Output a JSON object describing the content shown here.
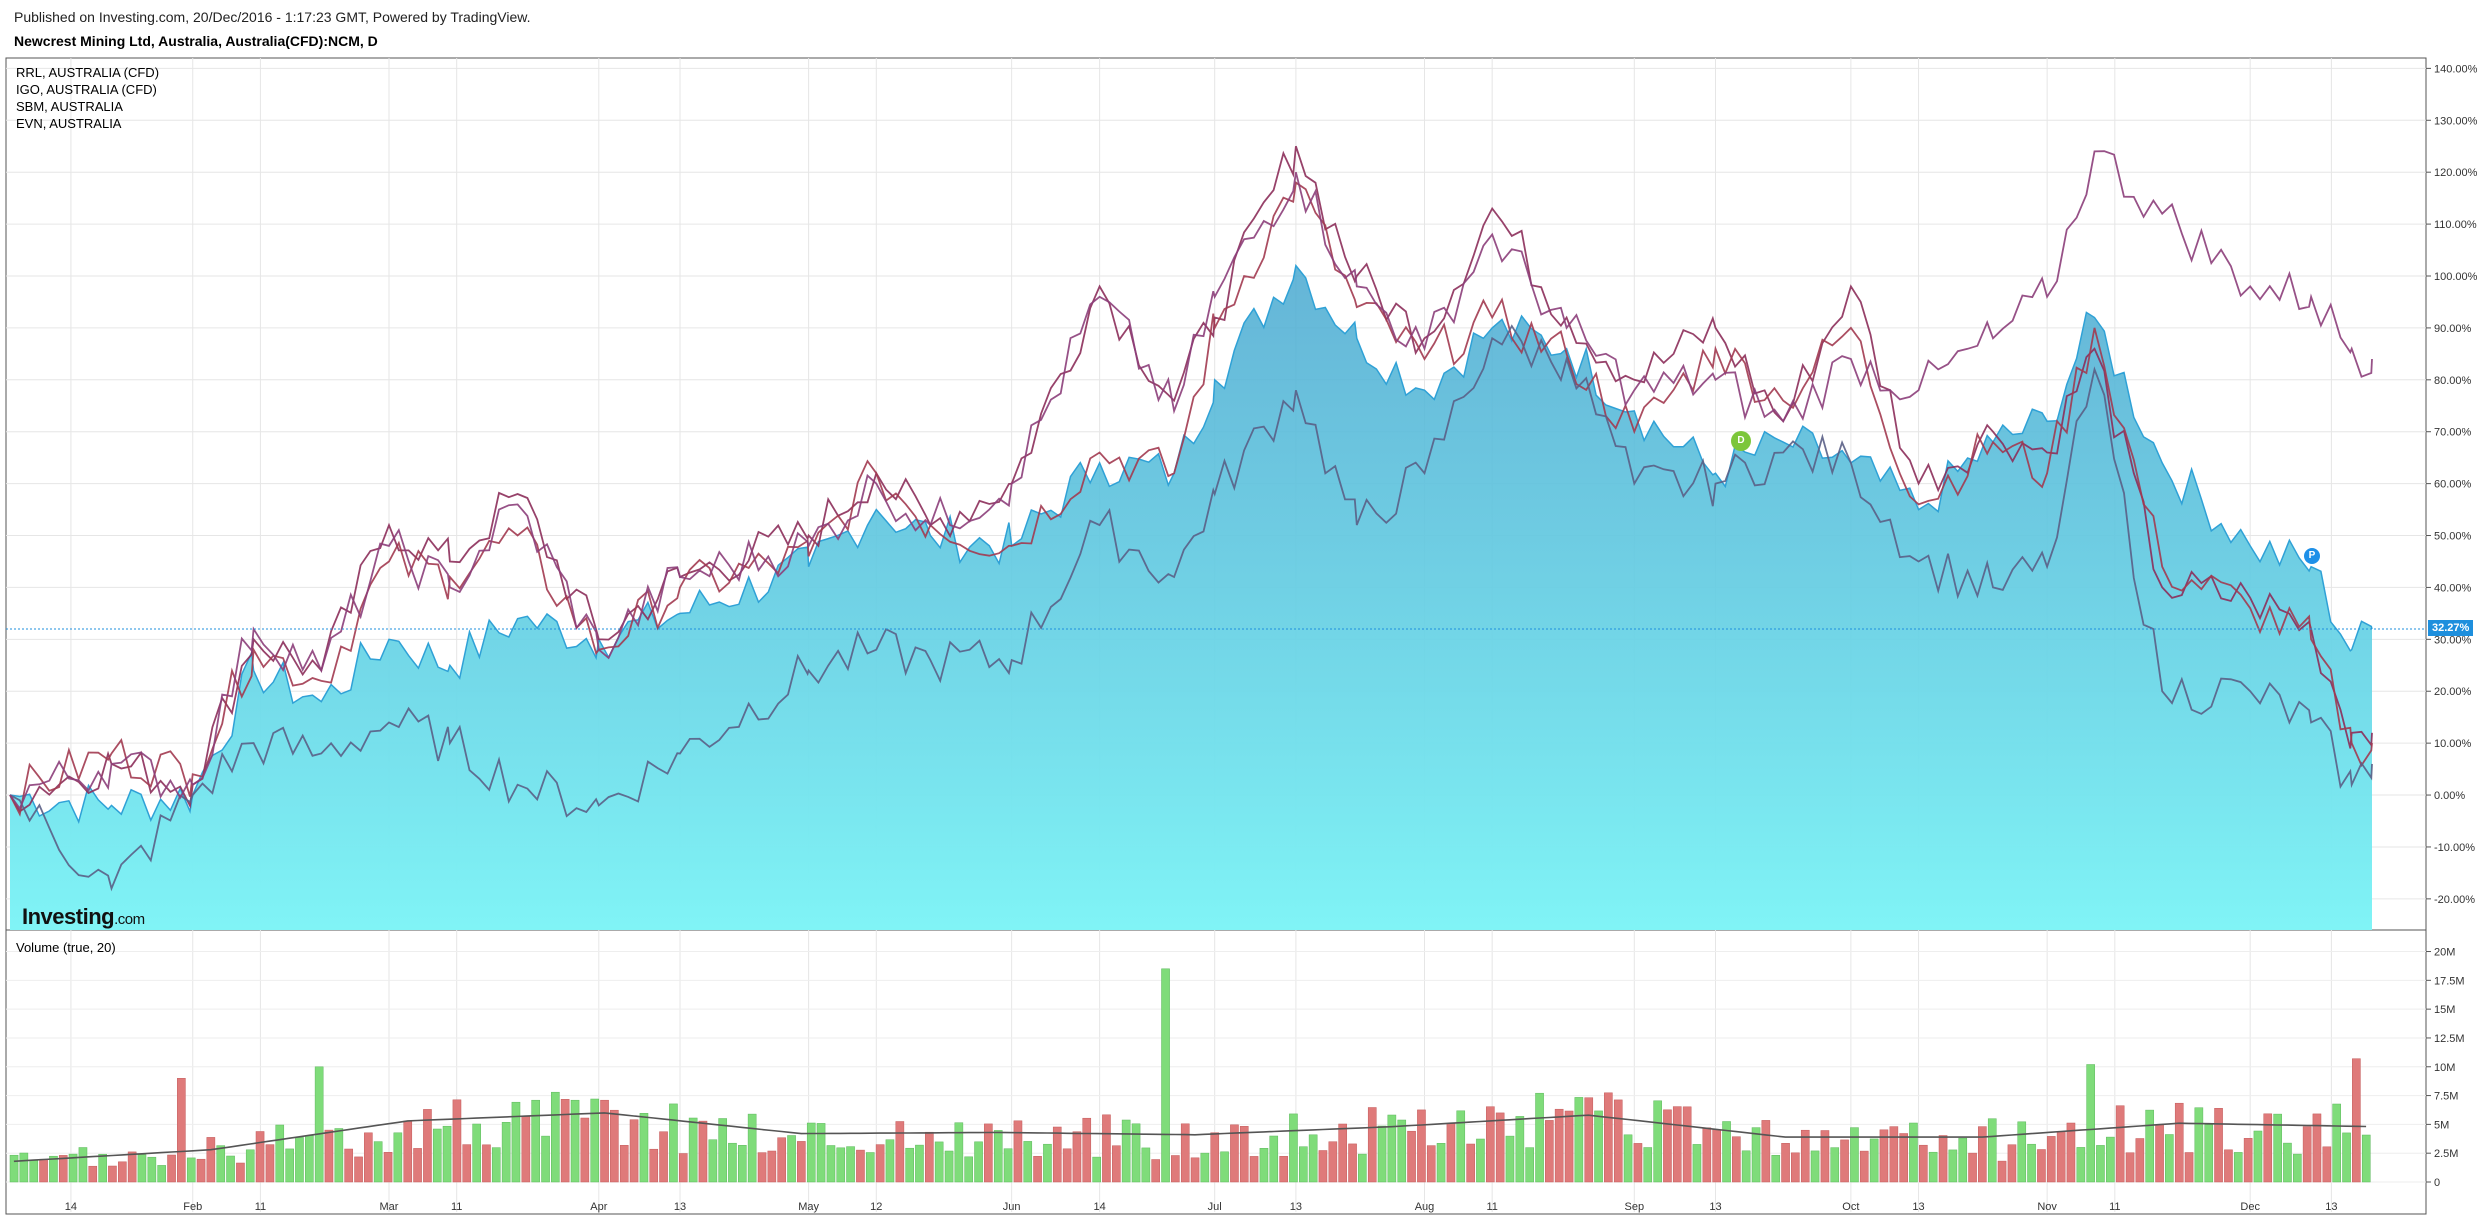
{
  "header": {
    "published": "Published on Investing.com, 20/Dec/2016 - 1:17:23 GMT, Powered by TradingView.",
    "instrument": "Newcrest Mining Ltd, Australia, Australia(CFD):NCM, D"
  },
  "legend": [
    "RRL, AUSTRALIA (CFD)",
    "IGO, AUSTRALIA (CFD)",
    "SBM, AUSTRALIA",
    "EVN, AUSTRALIA"
  ],
  "logo": {
    "main": "Investing",
    "suffix": ".com"
  },
  "volume_title": "Volume (true, 20)",
  "markers": {
    "dividend": "D",
    "profile": "P"
  },
  "last_price_label": "32.27%",
  "colors": {
    "area_fill_top": "#4aa8d0",
    "area_fill_bottom": "#80f4f6",
    "area_line": "#2fa1d6",
    "rrl": "#8c2d5a",
    "igo": "#a23a50",
    "sbm": "#5a5f86",
    "evn": "#8c3e7a",
    "vol_up": "#7fdc7a",
    "vol_down": "#df7a7a",
    "vol_ma": "#555555",
    "last_price": "#1e8fdd"
  },
  "chart_data": [
    {
      "type": "area",
      "title": "Newcrest Mining Ltd, Australia, Australia(CFD):NCM, D",
      "y_unit": "%",
      "ylim": [
        -26,
        142
      ],
      "y_ticks": [
        "140.00%",
        "130.00%",
        "120.00%",
        "110.00%",
        "100.00%",
        "90.00%",
        "80.00%",
        "70.00%",
        "60.00%",
        "50.00%",
        "40.00%",
        "30.00%",
        "20.00%",
        "10.00%",
        "0.00%",
        "-10.00%",
        "-20.00%"
      ],
      "y_tick_values": [
        140,
        130,
        120,
        110,
        100,
        90,
        80,
        70,
        60,
        50,
        40,
        30,
        20,
        10,
        0,
        -10,
        -20
      ],
      "x_ticks": [
        {
          "label": "14",
          "date": "2016-01-14"
        },
        {
          "label": "Feb",
          "date": "2016-02-01"
        },
        {
          "label": "11",
          "date": "2016-02-11"
        },
        {
          "label": "Mar",
          "date": "2016-03-01"
        },
        {
          "label": "11",
          "date": "2016-03-11"
        },
        {
          "label": "Apr",
          "date": "2016-04-01"
        },
        {
          "label": "13",
          "date": "2016-04-13"
        },
        {
          "label": "May",
          "date": "2016-05-02"
        },
        {
          "label": "12",
          "date": "2016-05-12"
        },
        {
          "label": "Jun",
          "date": "2016-06-01"
        },
        {
          "label": "14",
          "date": "2016-06-14"
        },
        {
          "label": "Jul",
          "date": "2016-07-01"
        },
        {
          "label": "13",
          "date": "2016-07-13"
        },
        {
          "label": "Aug",
          "date": "2016-08-01"
        },
        {
          "label": "11",
          "date": "2016-08-11"
        },
        {
          "label": "Sep",
          "date": "2016-09-01"
        },
        {
          "label": "13",
          "date": "2016-09-13"
        },
        {
          "label": "Oct",
          "date": "2016-10-03"
        },
        {
          "label": "13",
          "date": "2016-10-13"
        },
        {
          "label": "Nov",
          "date": "2016-11-01"
        },
        {
          "label": "11",
          "date": "2016-11-11"
        },
        {
          "label": "Dec",
          "date": "2016-12-01"
        },
        {
          "label": "13",
          "date": "2016-12-13"
        }
      ],
      "x_range": [
        "2016-01-05",
        "2016-12-19"
      ],
      "grid": true,
      "legend_position": "top-left",
      "series": [
        {
          "name": "NCM",
          "kind": "area",
          "points": [
            [
              "2016-01-05",
              0
            ],
            [
              "2016-01-20",
              -2
            ],
            [
              "2016-02-01",
              0
            ],
            [
              "2016-02-10",
              24
            ],
            [
              "2016-02-20",
              18
            ],
            [
              "2016-03-01",
              30
            ],
            [
              "2016-03-10",
              25
            ],
            [
              "2016-03-20",
              34
            ],
            [
              "2016-04-01",
              30
            ],
            [
              "2016-04-13",
              35
            ],
            [
              "2016-05-02",
              44
            ],
            [
              "2016-05-12",
              55
            ],
            [
              "2016-05-20",
              50
            ],
            [
              "2016-06-01",
              48
            ],
            [
              "2016-06-14",
              64
            ],
            [
              "2016-06-25",
              62
            ],
            [
              "2016-07-01",
              80
            ],
            [
              "2016-07-13",
              102
            ],
            [
              "2016-07-22",
              88
            ],
            [
              "2016-08-01",
              78
            ],
            [
              "2016-08-11",
              90
            ],
            [
              "2016-08-22",
              86
            ],
            [
              "2016-09-01",
              74
            ],
            [
              "2016-09-13",
              62
            ],
            [
              "2016-09-23",
              68
            ],
            [
              "2016-10-03",
              64
            ],
            [
              "2016-10-13",
              55
            ],
            [
              "2016-10-24",
              68
            ],
            [
              "2016-11-01",
              72
            ],
            [
              "2016-11-08",
              92
            ],
            [
              "2016-11-18",
              64
            ],
            [
              "2016-12-01",
              48
            ],
            [
              "2016-12-10",
              44
            ],
            [
              "2016-12-16",
              28
            ],
            [
              "2016-12-19",
              32
            ]
          ]
        },
        {
          "name": "RRL, AUSTRALIA (CFD)",
          "kind": "line",
          "points": [
            [
              "2016-01-05",
              0
            ],
            [
              "2016-01-20",
              6
            ],
            [
              "2016-02-01",
              2
            ],
            [
              "2016-02-10",
              30
            ],
            [
              "2016-02-20",
              24
            ],
            [
              "2016-03-01",
              52
            ],
            [
              "2016-03-10",
              45
            ],
            [
              "2016-03-20",
              58
            ],
            [
              "2016-04-01",
              30
            ],
            [
              "2016-04-13",
              42
            ],
            [
              "2016-05-02",
              50
            ],
            [
              "2016-05-12",
              62
            ],
            [
              "2016-05-20",
              52
            ],
            [
              "2016-06-01",
              60
            ],
            [
              "2016-06-14",
              98
            ],
            [
              "2016-06-25",
              76
            ],
            [
              "2016-07-01",
              92
            ],
            [
              "2016-07-13",
              125
            ],
            [
              "2016-07-22",
              100
            ],
            [
              "2016-08-01",
              88
            ],
            [
              "2016-08-11",
              113
            ],
            [
              "2016-08-22",
              92
            ],
            [
              "2016-09-01",
              80
            ],
            [
              "2016-09-13",
              90
            ],
            [
              "2016-09-23",
              72
            ],
            [
              "2016-10-03",
              98
            ],
            [
              "2016-10-13",
              60
            ],
            [
              "2016-10-24",
              70
            ],
            [
              "2016-11-01",
              66
            ],
            [
              "2016-11-08",
              86
            ],
            [
              "2016-11-18",
              40
            ],
            [
              "2016-12-01",
              38
            ],
            [
              "2016-12-10",
              32
            ],
            [
              "2016-12-16",
              12
            ],
            [
              "2016-12-19",
              12
            ]
          ]
        },
        {
          "name": "IGO, AUSTRALIA (CFD)",
          "kind": "line",
          "points": [
            [
              "2016-01-05",
              0
            ],
            [
              "2016-01-20",
              8
            ],
            [
              "2016-02-01",
              4
            ],
            [
              "2016-02-10",
              28
            ],
            [
              "2016-02-20",
              22
            ],
            [
              "2016-03-01",
              45
            ],
            [
              "2016-03-10",
              42
            ],
            [
              "2016-03-20",
              50
            ],
            [
              "2016-04-01",
              28
            ],
            [
              "2016-04-13",
              40
            ],
            [
              "2016-05-02",
              46
            ],
            [
              "2016-05-12",
              62
            ],
            [
              "2016-05-20",
              52
            ],
            [
              "2016-06-01",
              48
            ],
            [
              "2016-06-14",
              66
            ],
            [
              "2016-06-25",
              62
            ],
            [
              "2016-07-01",
              90
            ],
            [
              "2016-07-13",
              118
            ],
            [
              "2016-07-22",
              94
            ],
            [
              "2016-08-01",
              84
            ],
            [
              "2016-08-11",
              92
            ],
            [
              "2016-08-22",
              85
            ],
            [
              "2016-09-01",
              70
            ],
            [
              "2016-09-13",
              86
            ],
            [
              "2016-09-23",
              76
            ],
            [
              "2016-10-03",
              90
            ],
            [
              "2016-10-13",
              56
            ],
            [
              "2016-10-24",
              68
            ],
            [
              "2016-11-01",
              62
            ],
            [
              "2016-11-08",
              90
            ],
            [
              "2016-11-18",
              44
            ],
            [
              "2016-12-01",
              36
            ],
            [
              "2016-12-10",
              30
            ],
            [
              "2016-12-16",
              10
            ],
            [
              "2016-12-19",
              10
            ]
          ]
        },
        {
          "name": "SBM, AUSTRALIA",
          "kind": "line",
          "points": [
            [
              "2016-01-05",
              0
            ],
            [
              "2016-01-20",
              -18
            ],
            [
              "2016-02-01",
              0
            ],
            [
              "2016-02-10",
              10
            ],
            [
              "2016-02-20",
              8
            ],
            [
              "2016-03-01",
              14
            ],
            [
              "2016-03-10",
              10
            ],
            [
              "2016-03-20",
              2
            ],
            [
              "2016-04-01",
              -2
            ],
            [
              "2016-04-13",
              8
            ],
            [
              "2016-05-02",
              24
            ],
            [
              "2016-05-12",
              28
            ],
            [
              "2016-05-20",
              26
            ],
            [
              "2016-06-01",
              26
            ],
            [
              "2016-06-14",
              52
            ],
            [
              "2016-06-25",
              42
            ],
            [
              "2016-07-01",
              58
            ],
            [
              "2016-07-13",
              78
            ],
            [
              "2016-07-22",
              52
            ],
            [
              "2016-08-01",
              62
            ],
            [
              "2016-08-11",
              88
            ],
            [
              "2016-08-22",
              84
            ],
            [
              "2016-09-01",
              60
            ],
            [
              "2016-09-13",
              60
            ],
            [
              "2016-09-23",
              66
            ],
            [
              "2016-10-03",
              64
            ],
            [
              "2016-10-13",
              45
            ],
            [
              "2016-10-24",
              40
            ],
            [
              "2016-11-01",
              44
            ],
            [
              "2016-11-08",
              82
            ],
            [
              "2016-11-18",
              20
            ],
            [
              "2016-12-01",
              20
            ],
            [
              "2016-12-10",
              14
            ],
            [
              "2016-12-16",
              2
            ],
            [
              "2016-12-19",
              6
            ]
          ]
        },
        {
          "name": "EVN, AUSTRALIA",
          "kind": "line",
          "points": [
            [
              "2016-01-05",
              0
            ],
            [
              "2016-01-20",
              6
            ],
            [
              "2016-02-01",
              2
            ],
            [
              "2016-02-10",
              32
            ],
            [
              "2016-02-20",
              24
            ],
            [
              "2016-03-01",
              48
            ],
            [
              "2016-03-10",
              40
            ],
            [
              "2016-03-20",
              56
            ],
            [
              "2016-04-01",
              28
            ],
            [
              "2016-04-13",
              42
            ],
            [
              "2016-05-02",
              48
            ],
            [
              "2016-05-12",
              60
            ],
            [
              "2016-05-20",
              52
            ],
            [
              "2016-06-01",
              60
            ],
            [
              "2016-06-14",
              96
            ],
            [
              "2016-06-25",
              74
            ],
            [
              "2016-07-01",
              96
            ],
            [
              "2016-07-13",
              120
            ],
            [
              "2016-07-22",
              98
            ],
            [
              "2016-08-01",
              86
            ],
            [
              "2016-08-11",
              108
            ],
            [
              "2016-08-22",
              90
            ],
            [
              "2016-09-01",
              78
            ],
            [
              "2016-09-13",
              80
            ],
            [
              "2016-09-23",
              72
            ],
            [
              "2016-10-03",
              84
            ],
            [
              "2016-10-13",
              78
            ],
            [
              "2016-10-24",
              88
            ],
            [
              "2016-11-01",
              96
            ],
            [
              "2016-11-08",
              124
            ],
            [
              "2016-11-18",
              112
            ],
            [
              "2016-12-01",
              98
            ],
            [
              "2016-12-10",
              96
            ],
            [
              "2016-12-16",
              86
            ],
            [
              "2016-12-19",
              84
            ]
          ]
        }
      ]
    },
    {
      "type": "bar",
      "title": "Volume (true, 20)",
      "ylim": [
        0,
        21000000
      ],
      "y_ticks": [
        "20M",
        "17.5M",
        "15M",
        "12.5M",
        "10M",
        "7.5M",
        "5M",
        "2.5M",
        "0"
      ],
      "y_tick_values": [
        20000000,
        17500000,
        15000000,
        12500000,
        10000000,
        7500000,
        5000000,
        2500000,
        0
      ],
      "bar_count": 240,
      "peaks": [
        {
          "date": "2016-06-24",
          "value": 18500000,
          "up": true
        },
        {
          "date": "2016-01-30",
          "value": 9000000,
          "up": false
        },
        {
          "date": "2016-02-19",
          "value": 10000000,
          "up": true
        },
        {
          "date": "2016-11-08",
          "value": 10200000,
          "up": true
        },
        {
          "date": "2016-12-17",
          "value": 10700000,
          "up": false
        }
      ],
      "moving_average_20": [
        [
          0,
          1800000
        ],
        [
          20,
          2800000
        ],
        [
          40,
          5300000
        ],
        [
          60,
          6000000
        ],
        [
          80,
          4200000
        ],
        [
          100,
          4300000
        ],
        [
          120,
          4100000
        ],
        [
          140,
          4800000
        ],
        [
          160,
          5800000
        ],
        [
          180,
          3900000
        ],
        [
          200,
          3900000
        ],
        [
          220,
          5100000
        ],
        [
          240,
          4800000
        ]
      ],
      "legend_position": "top-left"
    }
  ]
}
